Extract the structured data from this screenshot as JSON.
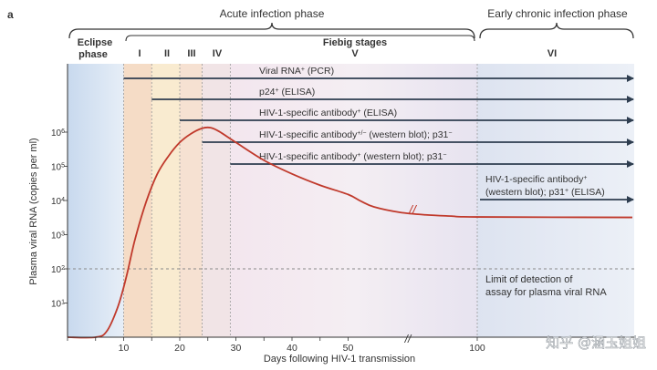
{
  "panel_label": "a",
  "chart_data": {
    "type": "line",
    "xlabel": "Days following HIV-1 transmission",
    "ylabel": "Plasma viral RNA (copies per ml)",
    "x_ticks": [
      "10",
      "20",
      "30",
      "40",
      "50",
      "100"
    ],
    "y_ticks": [
      {
        "base": "10",
        "exp": "1"
      },
      {
        "base": "10",
        "exp": "2"
      },
      {
        "base": "10",
        "exp": "3"
      },
      {
        "base": "10",
        "exp": "4"
      },
      {
        "base": "10",
        "exp": "5"
      },
      {
        "base": "10",
        "exp": "6"
      }
    ],
    "y_scale": "log",
    "ylim": [
      1,
      10000000
    ],
    "axis_break_symbol": "//",
    "series": [
      {
        "color": "#c0392b",
        "x": [
          0,
          5,
          7,
          9,
          10.5,
          12,
          14,
          16,
          18,
          20,
          22,
          24,
          25.5,
          27,
          30,
          35,
          40,
          45,
          50,
          55,
          60,
          70,
          80,
          90,
          100,
          120
        ],
        "y": [
          1,
          1,
          1.5,
          8,
          60,
          700,
          9000,
          60000,
          200000,
          500000,
          900000,
          1300000,
          1350000,
          1050000,
          500000,
          150000,
          60000,
          28000,
          15000,
          9500,
          6500,
          4500,
          3800,
          3500,
          3300,
          3200
        ]
      }
    ],
    "detection_limit": {
      "y": 100,
      "label_line1": "Limit of detection of",
      "label_line2": "assay for plasma viral RNA"
    }
  },
  "phases": {
    "acute_label": "Acute infection phase",
    "chronic_label": "Early chronic infection phase",
    "eclipse_line1": "Eclipse",
    "eclipse_line2": "phase",
    "fiebig_label": "Fiebig stages",
    "stages": [
      "I",
      "II",
      "III",
      "IV",
      "V",
      "VI"
    ],
    "stage_colors": [
      "#d6e4f2",
      "#f5dcc6",
      "#f9ebd0",
      "#f3e8e2",
      "#ebe4f0",
      "#e8e2f0",
      "#dde4f0"
    ]
  },
  "assays": [
    {
      "base": "Viral RNA",
      "sup": "+",
      "rest": " (PCR)",
      "start_day": 10
    },
    {
      "base": "p24",
      "sup": "+",
      "rest": " (ELISA)",
      "start_day": 15
    },
    {
      "base": "HIV-1-specific antibody",
      "sup": "+",
      "rest": " (ELISA)",
      "start_day": 20
    },
    {
      "base": "HIV-1-specific antibody",
      "sup": "+/−",
      "rest": " (western blot); p31",
      "sup2": "−",
      "start_day": 24
    },
    {
      "base": "HIV-1-specific antibody",
      "sup": "+",
      "rest": " (western blot); p31",
      "sup2": "−",
      "start_day": 29
    }
  ],
  "chronic_assay": {
    "line1_base": "HIV-1-specific antibody",
    "line1_sup": "+",
    "line2_base": "(western blot); p31",
    "line2_sup": "+",
    "line2_rest": " (ELISA)"
  },
  "watermark": "知乎 @涵玉姐姐"
}
